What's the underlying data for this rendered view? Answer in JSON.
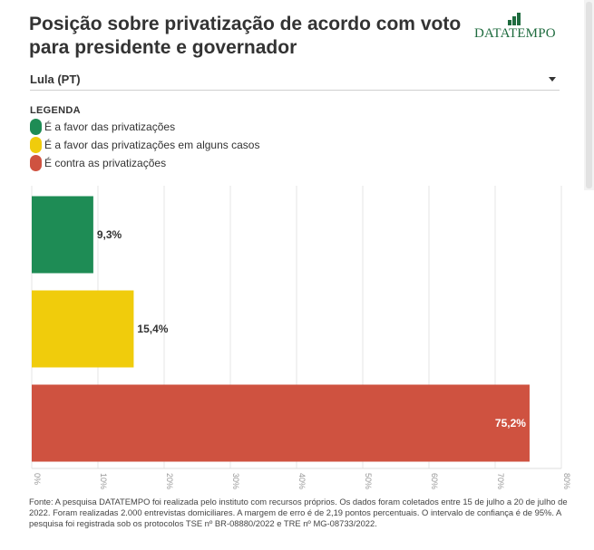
{
  "header": {
    "title": "Posição sobre privatização de acordo com voto para presidente e governador",
    "logo_text_bold": "DATA",
    "logo_text_rest": "TEMPO"
  },
  "filter": {
    "selected": "Lula (PT)"
  },
  "legend": {
    "title": "LEGENDA",
    "items": [
      {
        "label": "É a favor das privatizações",
        "color": "#1e8c55"
      },
      {
        "label": "É a favor das privatizações em alguns casos",
        "color": "#f0cc0c"
      },
      {
        "label": "É contra as privatizações",
        "color": "#cf5240"
      }
    ]
  },
  "chart_data": {
    "type": "bar",
    "orientation": "horizontal",
    "categories": [
      "É a favor das privatizações",
      "É a favor das privatizações em alguns casos",
      "É contra as privatizações"
    ],
    "values": [
      9.3,
      15.4,
      75.2
    ],
    "value_labels": [
      "9,3%",
      "15,4%",
      "75,2%"
    ],
    "colors": [
      "#1e8c55",
      "#f0cc0c",
      "#cf5240"
    ],
    "xlim": [
      0,
      80
    ],
    "xticks": [
      "0%",
      "10%",
      "20%",
      "30%",
      "40%",
      "50%",
      "60%",
      "70%",
      "80%"
    ],
    "grid": true
  },
  "footer": {
    "source": "Fonte: A pesquisa DATATEMPO foi realizada pelo instituto com recursos próprios. Os dados foram coletados entre 15 de julho a 20 de julho de 2022. Foram realizadas 2.000 entrevistas domiciliares. A margem de erro é de 2,19 pontos percentuais. O intervalo de confiança é de 95%. A pesquisa foi registrada sob os protocolos TSE nº BR-08880/2022 e TRE nº MG-08733/2022."
  }
}
